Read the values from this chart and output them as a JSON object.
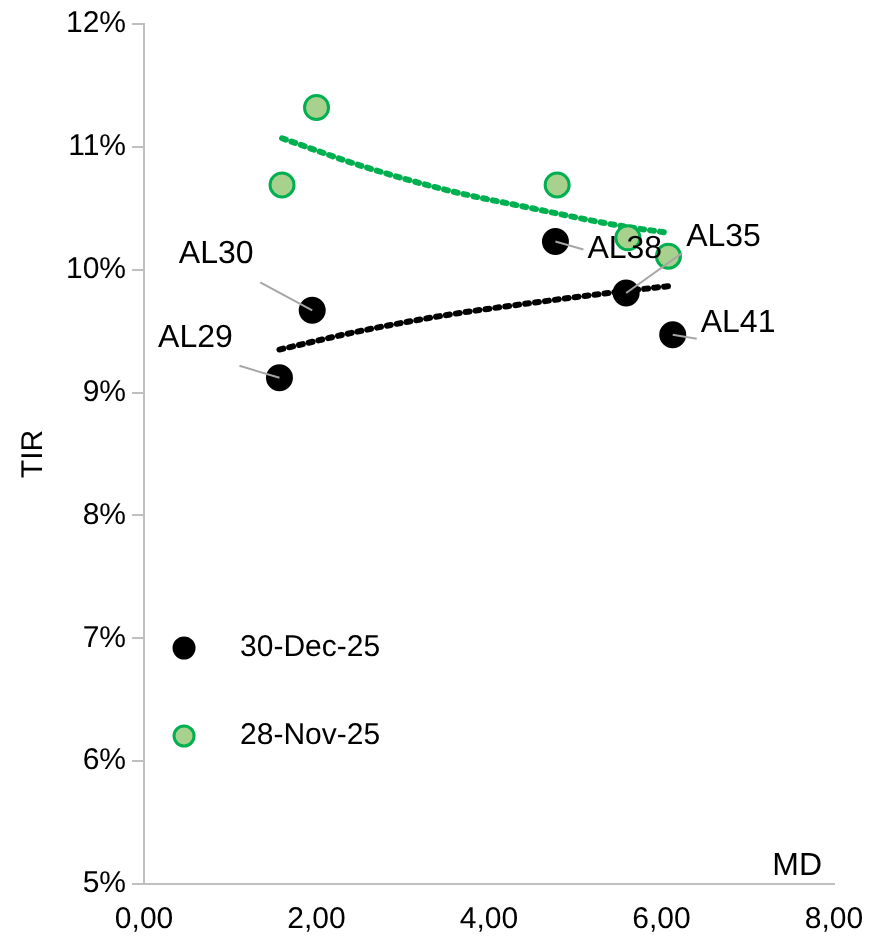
{
  "chart_data": {
    "type": "scatter",
    "xlabel": "MD",
    "ylabel": "TIR",
    "xlim": [
      0,
      8
    ],
    "xticks": [
      {
        "value": 0,
        "label": "0,00"
      },
      {
        "value": 2,
        "label": "2,00"
      },
      {
        "value": 4,
        "label": "4,00"
      },
      {
        "value": 6,
        "label": "6,00"
      },
      {
        "value": 8,
        "label": "8,00"
      }
    ],
    "ylim": [
      5,
      12
    ],
    "yticks": [
      {
        "value": 5,
        "label": "5%"
      },
      {
        "value": 6,
        "label": "6%"
      },
      {
        "value": 7,
        "label": "7%"
      },
      {
        "value": 8,
        "label": "8%"
      },
      {
        "value": 9,
        "label": "9%"
      },
      {
        "value": 10,
        "label": "10%"
      },
      {
        "value": 11,
        "label": "11%"
      },
      {
        "value": 12,
        "label": "12%"
      }
    ],
    "grid": false,
    "legend": "bottom left",
    "marker": "circle",
    "series": [
      {
        "name": "30-Dec-25",
        "color": "#000000",
        "x": [
          1.57,
          1.95,
          4.77,
          5.59,
          6.13
        ],
        "values": [
          9.12,
          9.67,
          10.23,
          9.81,
          9.47
        ]
      },
      {
        "name": "28-Nov-25",
        "color": "#a9d18e",
        "x": [
          1.6,
          2.0,
          4.79,
          5.61,
          6.08
        ],
        "values": [
          10.69,
          11.32,
          10.69,
          10.26,
          10.11
        ]
      },
      {
        "type": "line",
        "color": "#000000",
        "line_style": "dotted",
        "marker": "none",
        "x": [
          1.57,
          2.5,
          3.5,
          4.5,
          5.5,
          6.13
        ],
        "values": [
          9.35,
          9.5,
          9.63,
          9.73,
          9.82,
          9.87
        ]
      },
      {
        "type": "line",
        "color": "#00b050",
        "line_style": "dotted",
        "marker": "none",
        "x": [
          1.6,
          2.5,
          3.5,
          4.5,
          5.5,
          6.08
        ],
        "values": [
          11.07,
          10.85,
          10.65,
          10.5,
          10.36,
          10.3
        ]
      }
    ],
    "annotations": [
      {
        "text": "AL29",
        "x": 1.57,
        "y": 9.12
      },
      {
        "text": "AL30",
        "x": 1.95,
        "y": 9.67
      },
      {
        "text": "AL38",
        "x": 4.77,
        "y": 10.23
      },
      {
        "text": "AL35",
        "x": 5.59,
        "y": 9.81
      },
      {
        "text": "AL41",
        "x": 6.13,
        "y": 9.47
      }
    ]
  }
}
